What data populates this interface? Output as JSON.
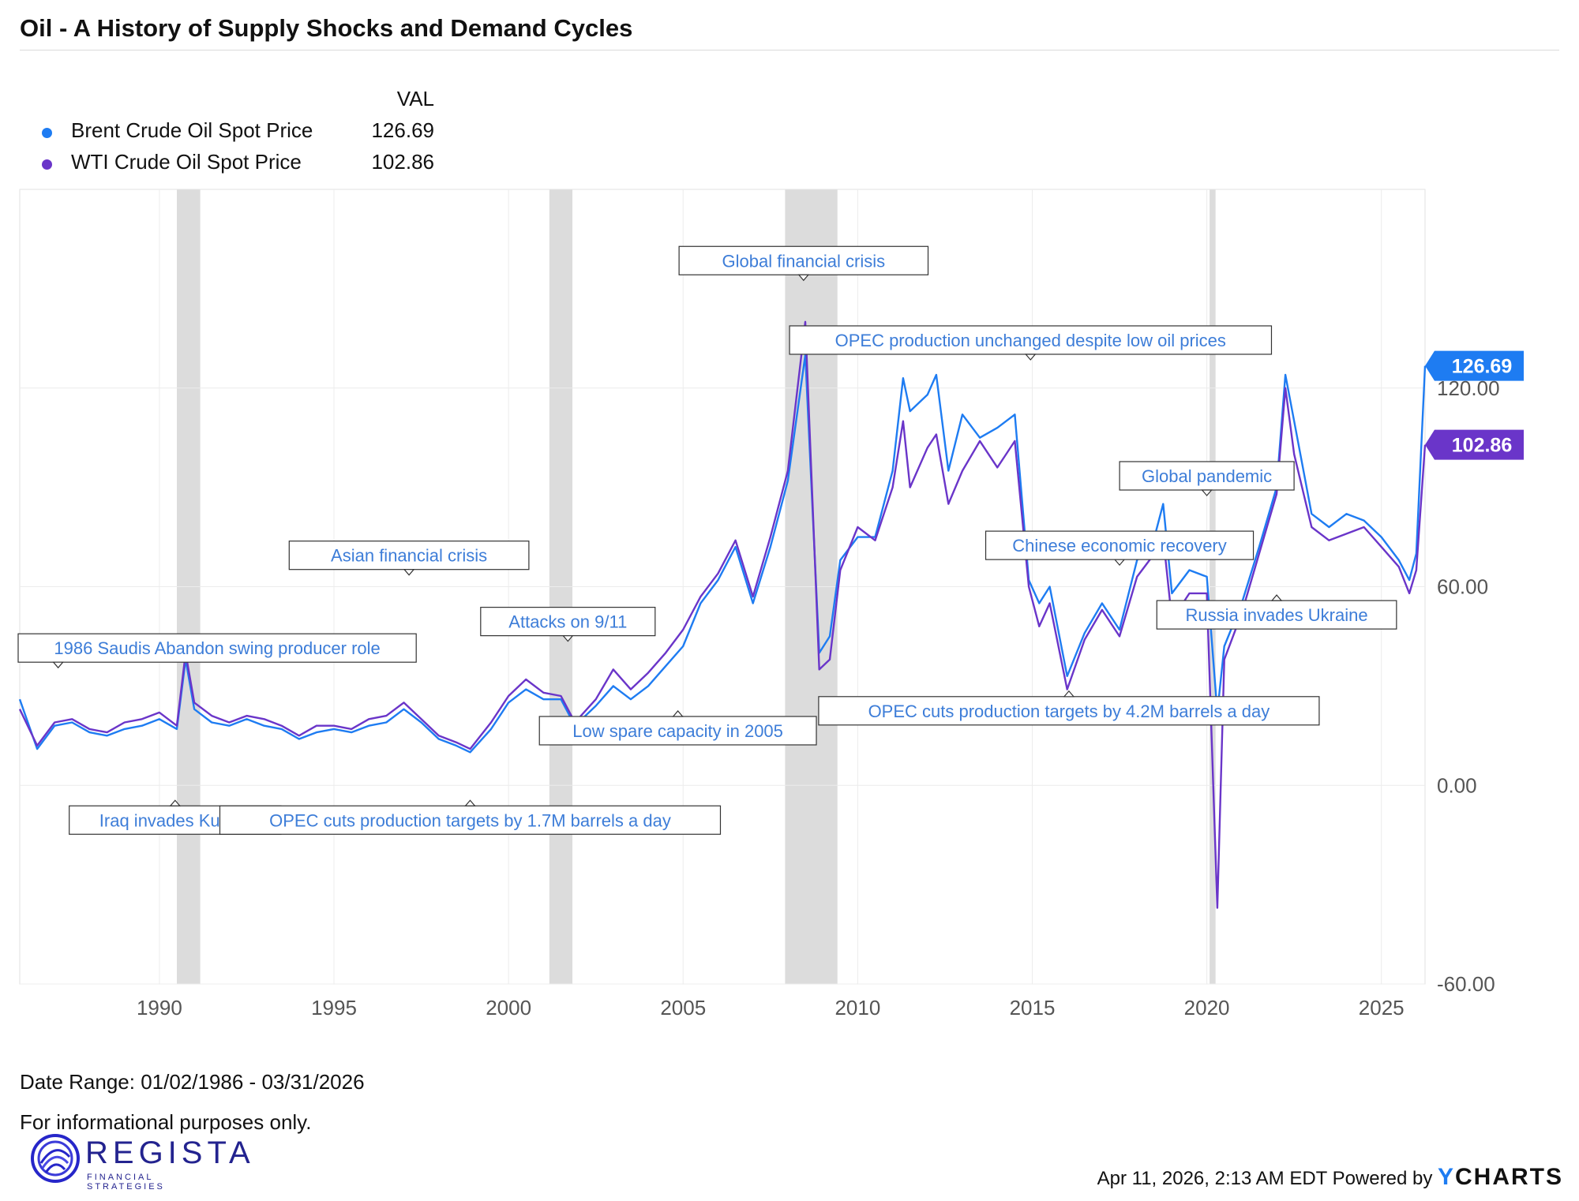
{
  "title": "Oil - A History of Supply Shocks and Demand Cycles",
  "legend": {
    "header": "VAL",
    "items": [
      {
        "name": "Brent Crude Oil Spot Price",
        "value": "126.69",
        "color": "#1e7cf2"
      },
      {
        "name": "WTI Crude Oil Spot Price",
        "value": "102.86",
        "color": "#6a35c9"
      }
    ]
  },
  "chart_data": {
    "type": "line",
    "title": "Oil - A History of Supply Shocks and Demand Cycles",
    "xlabel": "",
    "ylabel": "",
    "xlim": [
      1986.0,
      2026.25
    ],
    "ylim": [
      -60,
      180
    ],
    "x_ticks": [
      "1990",
      "1995",
      "2000",
      "2005",
      "2010",
      "2015",
      "2020",
      "2025"
    ],
    "y_ticks": [
      "-60.00",
      "0.00",
      "60.00",
      "120.00"
    ],
    "recessions": [
      [
        1990.5,
        1991.17
      ],
      [
        2001.17,
        2001.83
      ],
      [
        2007.92,
        2009.42
      ],
      [
        2020.08,
        2020.25
      ]
    ],
    "series": [
      {
        "name": "Brent Crude Oil Spot Price",
        "color": "#1e7cf2",
        "last_value": "126.69",
        "points": [
          [
            1986.0,
            26
          ],
          [
            1986.5,
            11
          ],
          [
            1987.0,
            18
          ],
          [
            1987.5,
            19
          ],
          [
            1988.0,
            16
          ],
          [
            1988.5,
            15
          ],
          [
            1989.0,
            17
          ],
          [
            1989.5,
            18
          ],
          [
            1990.0,
            20
          ],
          [
            1990.5,
            17
          ],
          [
            1990.75,
            38
          ],
          [
            1991.0,
            23
          ],
          [
            1991.5,
            19
          ],
          [
            1992.0,
            18
          ],
          [
            1992.5,
            20
          ],
          [
            1993.0,
            18
          ],
          [
            1993.5,
            17
          ],
          [
            1994.0,
            14
          ],
          [
            1994.5,
            16
          ],
          [
            1995.0,
            17
          ],
          [
            1995.5,
            16
          ],
          [
            1996.0,
            18
          ],
          [
            1996.5,
            19
          ],
          [
            1997.0,
            23
          ],
          [
            1997.5,
            19
          ],
          [
            1998.0,
            14
          ],
          [
            1998.5,
            12
          ],
          [
            1998.9,
            10
          ],
          [
            1999.5,
            17
          ],
          [
            2000.0,
            25
          ],
          [
            2000.5,
            29
          ],
          [
            2001.0,
            26
          ],
          [
            2001.5,
            26
          ],
          [
            2001.9,
            18
          ],
          [
            2002.5,
            24
          ],
          [
            2003.0,
            30
          ],
          [
            2003.5,
            26
          ],
          [
            2004.0,
            30
          ],
          [
            2004.5,
            36
          ],
          [
            2005.0,
            42
          ],
          [
            2005.5,
            55
          ],
          [
            2006.0,
            62
          ],
          [
            2006.5,
            72
          ],
          [
            2007.0,
            55
          ],
          [
            2007.5,
            72
          ],
          [
            2008.0,
            92
          ],
          [
            2008.5,
            130
          ],
          [
            2008.9,
            40
          ],
          [
            2009.2,
            45
          ],
          [
            2009.5,
            68
          ],
          [
            2010.0,
            75
          ],
          [
            2010.5,
            75
          ],
          [
            2011.0,
            95
          ],
          [
            2011.3,
            123
          ],
          [
            2011.5,
            113
          ],
          [
            2012.0,
            118
          ],
          [
            2012.25,
            124
          ],
          [
            2012.6,
            95
          ],
          [
            2013.0,
            112
          ],
          [
            2013.5,
            105
          ],
          [
            2014.0,
            108
          ],
          [
            2014.5,
            112
          ],
          [
            2014.9,
            62
          ],
          [
            2015.2,
            55
          ],
          [
            2015.5,
            60
          ],
          [
            2016.0,
            33
          ],
          [
            2016.5,
            46
          ],
          [
            2017.0,
            55
          ],
          [
            2017.5,
            47
          ],
          [
            2018.0,
            68
          ],
          [
            2018.5,
            75
          ],
          [
            2018.75,
            85
          ],
          [
            2019.0,
            58
          ],
          [
            2019.5,
            65
          ],
          [
            2020.0,
            63
          ],
          [
            2020.3,
            22
          ],
          [
            2020.5,
            42
          ],
          [
            2021.0,
            55
          ],
          [
            2021.5,
            72
          ],
          [
            2022.0,
            90
          ],
          [
            2022.25,
            124
          ],
          [
            2022.5,
            110
          ],
          [
            2023.0,
            82
          ],
          [
            2023.5,
            78
          ],
          [
            2024.0,
            82
          ],
          [
            2024.5,
            80
          ],
          [
            2025.0,
            75
          ],
          [
            2025.5,
            68
          ],
          [
            2025.8,
            62
          ],
          [
            2026.0,
            70
          ],
          [
            2026.25,
            126.69
          ]
        ]
      },
      {
        "name": "WTI Crude Oil Spot Price",
        "color": "#6a35c9",
        "last_value": "102.86",
        "points": [
          [
            1986.0,
            23
          ],
          [
            1986.5,
            12
          ],
          [
            1987.0,
            19
          ],
          [
            1987.5,
            20
          ],
          [
            1988.0,
            17
          ],
          [
            1988.5,
            16
          ],
          [
            1989.0,
            19
          ],
          [
            1989.5,
            20
          ],
          [
            1990.0,
            22
          ],
          [
            1990.5,
            18
          ],
          [
            1990.75,
            40
          ],
          [
            1991.0,
            25
          ],
          [
            1991.5,
            21
          ],
          [
            1992.0,
            19
          ],
          [
            1992.5,
            21
          ],
          [
            1993.0,
            20
          ],
          [
            1993.5,
            18
          ],
          [
            1994.0,
            15
          ],
          [
            1994.5,
            18
          ],
          [
            1995.0,
            18
          ],
          [
            1995.5,
            17
          ],
          [
            1996.0,
            20
          ],
          [
            1996.5,
            21
          ],
          [
            1997.0,
            25
          ],
          [
            1997.5,
            20
          ],
          [
            1998.0,
            15
          ],
          [
            1998.5,
            13
          ],
          [
            1998.9,
            11
          ],
          [
            1999.5,
            19
          ],
          [
            2000.0,
            27
          ],
          [
            2000.5,
            32
          ],
          [
            2001.0,
            28
          ],
          [
            2001.5,
            27
          ],
          [
            2001.9,
            19
          ],
          [
            2002.5,
            26
          ],
          [
            2003.0,
            35
          ],
          [
            2003.5,
            29
          ],
          [
            2004.0,
            34
          ],
          [
            2004.5,
            40
          ],
          [
            2005.0,
            47
          ],
          [
            2005.5,
            57
          ],
          [
            2006.0,
            64
          ],
          [
            2006.5,
            74
          ],
          [
            2007.0,
            57
          ],
          [
            2007.5,
            75
          ],
          [
            2008.0,
            95
          ],
          [
            2008.5,
            140
          ],
          [
            2008.9,
            35
          ],
          [
            2009.2,
            38
          ],
          [
            2009.5,
            65
          ],
          [
            2010.0,
            78
          ],
          [
            2010.5,
            74
          ],
          [
            2011.0,
            90
          ],
          [
            2011.3,
            110
          ],
          [
            2011.5,
            90
          ],
          [
            2012.0,
            102
          ],
          [
            2012.25,
            106
          ],
          [
            2012.6,
            85
          ],
          [
            2013.0,
            95
          ],
          [
            2013.5,
            104
          ],
          [
            2014.0,
            96
          ],
          [
            2014.5,
            104
          ],
          [
            2014.9,
            60
          ],
          [
            2015.2,
            48
          ],
          [
            2015.5,
            55
          ],
          [
            2016.0,
            29
          ],
          [
            2016.5,
            44
          ],
          [
            2017.0,
            53
          ],
          [
            2017.5,
            45
          ],
          [
            2018.0,
            63
          ],
          [
            2018.5,
            70
          ],
          [
            2018.75,
            75
          ],
          [
            2019.0,
            50
          ],
          [
            2019.5,
            58
          ],
          [
            2020.0,
            58
          ],
          [
            2020.3,
            -37
          ],
          [
            2020.5,
            38
          ],
          [
            2021.0,
            52
          ],
          [
            2021.5,
            70
          ],
          [
            2022.0,
            88
          ],
          [
            2022.25,
            120
          ],
          [
            2022.5,
            100
          ],
          [
            2023.0,
            78
          ],
          [
            2023.5,
            74
          ],
          [
            2024.0,
            76
          ],
          [
            2024.5,
            78
          ],
          [
            2025.0,
            72
          ],
          [
            2025.5,
            66
          ],
          [
            2025.8,
            58
          ],
          [
            2026.0,
            65
          ],
          [
            2026.25,
            102.86
          ]
        ]
      }
    ],
    "annotations": [
      {
        "text": "1986 Saudis Abandon swing producer role",
        "x": 1987.1,
        "y": 31,
        "side": "above"
      },
      {
        "text": "Iraq invades Kuwait",
        "x": 1990.45,
        "y": 0,
        "side": "below"
      },
      {
        "text": "Asian financial crisis",
        "x": 1997.15,
        "y": 59,
        "side": "above"
      },
      {
        "text": "Attacks on 9/11",
        "x": 2001.7,
        "y": 39,
        "side": "above"
      },
      {
        "text": "OPEC cuts production targets by 1.7M barrels a day",
        "x": 1998.9,
        "y": 0,
        "side": "below"
      },
      {
        "text": "Low spare capacity in 2005",
        "x": 2004.85,
        "y": 27,
        "side": "below"
      },
      {
        "text": "Global financial crisis",
        "x": 2008.45,
        "y": 148,
        "side": "above"
      },
      {
        "text": "OPEC production unchanged despite low oil prices",
        "x": 2014.95,
        "y": 124,
        "side": "above"
      },
      {
        "text": "OPEC cuts production targets by 4.2M barrels a day",
        "x": 2016.05,
        "y": 33,
        "side": "below"
      },
      {
        "text": "Chinese economic recovery",
        "x": 2017.5,
        "y": 62,
        "side": "above"
      },
      {
        "text": "Global pandemic",
        "x": 2020.0,
        "y": 83,
        "side": "above"
      },
      {
        "text": "Russia invades Ukraine",
        "x": 2022.0,
        "y": 62,
        "side": "below"
      }
    ]
  },
  "footer": {
    "date_range": "Date Range: 01/02/1986 - 03/31/2026",
    "note": "For informational purposes only."
  },
  "logo": {
    "name": "REGISTA",
    "tagline": "FINANCIAL STRATEGIES"
  },
  "credit": {
    "timestamp": "Apr 11, 2026, 2:13 AM EDT Powered by",
    "brand_y": "Y",
    "brand_rest": "CHARTS"
  }
}
